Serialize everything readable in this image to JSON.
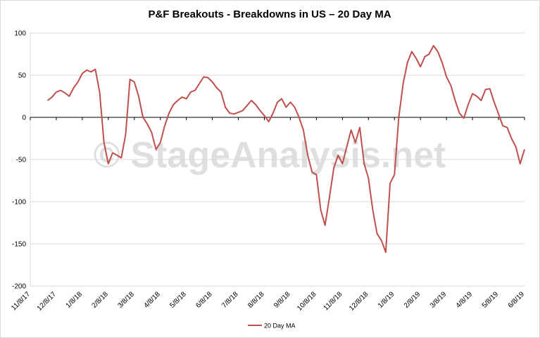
{
  "chart_data": {
    "type": "line",
    "title": "P&F Breakouts - Breakdowns in US – 20 Day MA",
    "watermark": "© StageAnalysis.net",
    "categories": [
      "11/8/17",
      null,
      null,
      null,
      null,
      null,
      "12/8/17",
      null,
      null,
      null,
      null,
      null,
      "1/8/18",
      null,
      null,
      null,
      null,
      null,
      "2/8/18",
      null,
      null,
      null,
      null,
      null,
      "3/8/18",
      null,
      null,
      null,
      null,
      null,
      "4/8/18",
      null,
      null,
      null,
      null,
      null,
      "5/8/18",
      null,
      null,
      null,
      null,
      null,
      "6/8/18",
      null,
      null,
      null,
      null,
      null,
      "7/8/18",
      null,
      null,
      null,
      null,
      null,
      "8/8/18",
      null,
      null,
      null,
      null,
      null,
      "9/8/18",
      null,
      null,
      null,
      null,
      null,
      "10/8/18",
      null,
      null,
      null,
      null,
      null,
      "11/8/18",
      null,
      null,
      null,
      null,
      null,
      "12/8/18",
      null,
      null,
      null,
      null,
      null,
      "1/8/19",
      null,
      null,
      null,
      null,
      null,
      "2/8/19",
      null,
      null,
      null,
      null,
      null,
      "3/8/19",
      null,
      null,
      null,
      null,
      null,
      "4/8/19",
      null,
      null,
      null,
      null,
      null,
      "5/8/19",
      null,
      null,
      null,
      null,
      null,
      "6/8/19"
    ],
    "series": [
      {
        "name": "20 Day MA",
        "color": "#c0504d",
        "values": [
          null,
          null,
          null,
          null,
          20,
          24,
          30,
          32,
          29,
          25,
          35,
          42,
          52,
          56,
          54,
          57,
          30,
          -30,
          -55,
          -42,
          -45,
          -48,
          -20,
          45,
          42,
          25,
          0,
          -8,
          -18,
          -38,
          -30,
          -10,
          5,
          15,
          20,
          24,
          22,
          30,
          32,
          40,
          48,
          47,
          42,
          35,
          30,
          12,
          5,
          4,
          6,
          8,
          14,
          20,
          15,
          8,
          2,
          -5,
          5,
          18,
          22,
          12,
          18,
          12,
          0,
          -15,
          -45,
          -65,
          -68,
          -110,
          -128,
          -95,
          -60,
          -45,
          -55,
          -35,
          -15,
          -30,
          -12,
          -55,
          -72,
          -110,
          -138,
          -146,
          -160,
          -78,
          -68,
          0,
          40,
          65,
          78,
          70,
          60,
          72,
          75,
          85,
          78,
          65,
          48,
          38,
          20,
          5,
          -1,
          15,
          28,
          25,
          20,
          33,
          34,
          18,
          4,
          -10,
          -12,
          -25,
          -35,
          -55,
          -38
        ]
      }
    ],
    "ylim": [
      -200,
      100
    ],
    "yticks": [
      -200,
      -150,
      -100,
      -50,
      0,
      50,
      100
    ],
    "grid": true,
    "legend": "bottom"
  }
}
